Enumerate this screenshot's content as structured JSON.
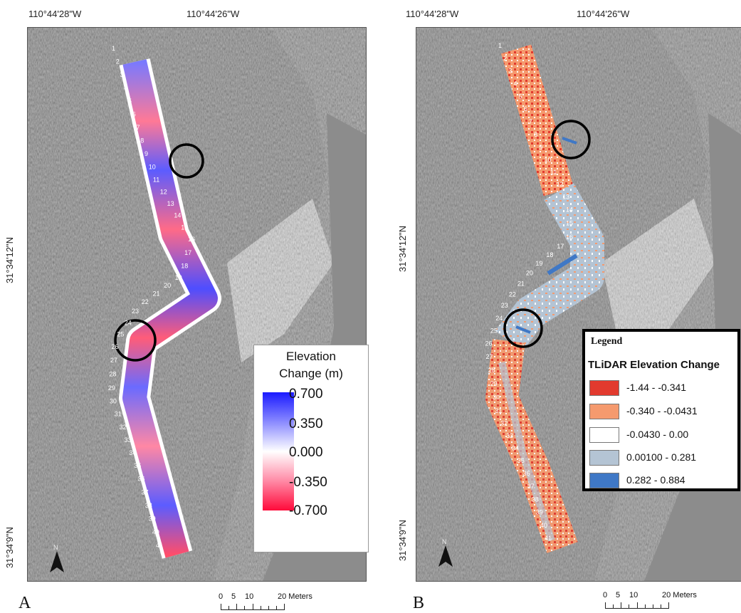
{
  "panels": [
    {
      "letter": "A",
      "lon_labels": [
        "110°44'28\"W",
        "110°44'26\"W"
      ],
      "lat_labels": [
        "31°34'12\"N",
        "31°34'9\"N"
      ],
      "north_label": "N",
      "stations": [
        "1",
        "2",
        "3",
        "4",
        "5",
        "6",
        "7",
        "8",
        "9",
        "10",
        "11",
        "12",
        "13",
        "14",
        "15",
        "16",
        "17",
        "18",
        "19",
        "20",
        "21",
        "22",
        "23",
        "24",
        "25",
        "26",
        "27",
        "28",
        "29",
        "30",
        "31",
        "32",
        "33",
        "34",
        "35",
        "36",
        "37",
        "38",
        "39",
        "40",
        "41"
      ]
    },
    {
      "letter": "B",
      "lon_labels": [
        "110°44'28\"W",
        "110°44'26\"W"
      ],
      "lat_labels": [
        "31°34'12\"N",
        "31°34'9\"N"
      ],
      "north_label": "N",
      "stations": [
        "1",
        "2",
        "3",
        "4",
        "5",
        "6",
        "7",
        "8",
        "9",
        "10",
        "11",
        "12",
        "13",
        "14",
        "15",
        "16",
        "17",
        "18",
        "19",
        "20",
        "21",
        "22",
        "23",
        "24",
        "25",
        "26",
        "27",
        "28",
        "29",
        "30",
        "31",
        "32",
        "33",
        "34",
        "35",
        "36",
        "37",
        "38",
        "39",
        "40",
        "41"
      ]
    }
  ],
  "scalebar": {
    "ticks": [
      "0",
      "5",
      "10",
      "20 Meters"
    ]
  },
  "legend_gradient": {
    "title_line1": "Elevation",
    "title_line2": "Change (m)",
    "ticks": [
      "0.700",
      "0.350",
      "0.000",
      "-0.350",
      "-0.700"
    ],
    "color_max": "#1a1aff",
    "color_zero": "#ffffff",
    "color_min": "#ff0a3a"
  },
  "legend_classes": {
    "title": "Legend",
    "subtitle": "TLiDAR Elevation Change",
    "classes": [
      {
        "label": "-1.44 - -0.341",
        "color": "#e23a2e"
      },
      {
        "label": "-0.340 - -0.0431",
        "color": "#f59a6e"
      },
      {
        "label": "-0.0430 - 0.00",
        "color": "#ffffff"
      },
      {
        "label": "0.00100 - 0.281",
        "color": "#b4c4d4"
      },
      {
        "label": "0.282 - 0.884",
        "color": "#3f78c6"
      }
    ]
  },
  "icons": [
    "north-arrow-icon",
    "scale-bar"
  ]
}
